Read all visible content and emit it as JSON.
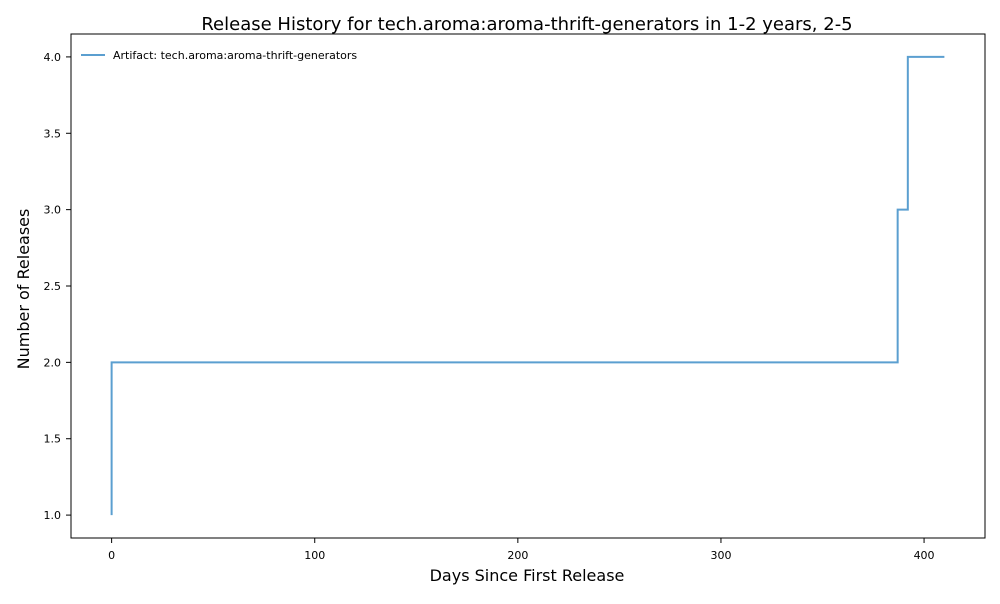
{
  "chart_data": {
    "type": "line",
    "title": "Release History for tech.aroma:aroma-thrift-generators in 1-2 years, 2-5",
    "xlabel": "Days Since First Release",
    "ylabel": "Number of Releases",
    "xlim": [
      -20,
      430
    ],
    "ylim": [
      0.85,
      4.15
    ],
    "xticks": [
      0,
      100,
      200,
      300,
      400
    ],
    "xtick_labels": [
      "0",
      "100",
      "200",
      "300",
      "400"
    ],
    "yticks": [
      1.0,
      1.5,
      2.0,
      2.5,
      3.0,
      3.5,
      4.0
    ],
    "ytick_labels": [
      "1.0",
      "1.5",
      "2.0",
      "2.5",
      "3.0",
      "3.5",
      "4.0"
    ],
    "grid": false,
    "legend_position": "upper-left",
    "series": [
      {
        "name": "Artifact: tech.aroma:aroma-thrift-generators",
        "color": "#5b9fd0",
        "step": "post",
        "x": [
          0,
          0,
          387,
          392,
          410
        ],
        "y": [
          1,
          2,
          3,
          4,
          4
        ]
      }
    ]
  }
}
